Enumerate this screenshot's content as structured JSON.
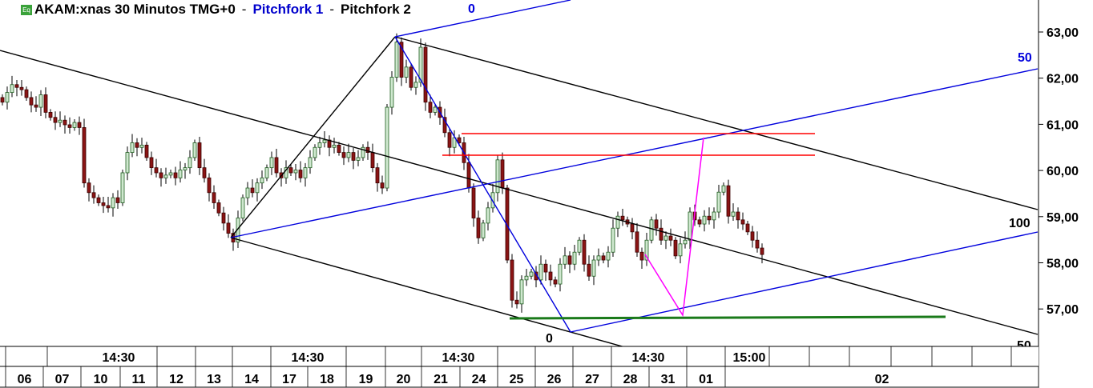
{
  "header": {
    "symbol_title": "AKAM:xnas 30 Minutos TMG+0",
    "separator": "-",
    "study1": "Pitchfork 1",
    "study2": "Pitchfork 2",
    "badge": "Eq"
  },
  "drawing_labels": {
    "pf1_top": "0",
    "pf1_50": "50",
    "pf2_100": "100",
    "pf2_0": "0",
    "pf2_50": "50"
  },
  "chart_data": {
    "type": "candlestick",
    "title": "AKAM:xnas 30 Minutos TMG+0",
    "y_ticks": [
      "63,00",
      "62,00",
      "61,00",
      "60,00",
      "59,00",
      "58,00",
      "57,00"
    ],
    "y_tick_values": [
      63,
      62,
      61,
      60,
      59,
      58,
      57
    ],
    "ylim": [
      56.1,
      63.7
    ],
    "grid": false,
    "time_labels": [
      "14:30",
      "14:30",
      "14:30",
      "14:30",
      "15:00"
    ],
    "date_labels": [
      "06",
      "07",
      "10",
      "11",
      "12",
      "13",
      "14",
      "17",
      "18",
      "19",
      "20",
      "21",
      "24",
      "25",
      "26",
      "27",
      "28",
      "31",
      "01",
      "02"
    ],
    "close": [
      61.48,
      61.69,
      61.86,
      61.8,
      61.75,
      61.58,
      61.42,
      61.37,
      61.64,
      61.26,
      61.15,
      61.04,
      61.09,
      60.99,
      60.93,
      61.04,
      60.93,
      59.73,
      59.52,
      59.41,
      59.3,
      59.24,
      59.19,
      59.41,
      59.3,
      59.95,
      60.39,
      60.6,
      60.5,
      60.55,
      60.28,
      60.06,
      59.95,
      59.84,
      59.9,
      59.95,
      59.84,
      60.01,
      60.06,
      60.28,
      60.6,
      60.06,
      59.84,
      59.52,
      59.3,
      59.08,
      58.86,
      58.64,
      58.45,
      58.97,
      59.41,
      59.62,
      59.52,
      59.73,
      59.84,
      60.06,
      60.28,
      59.95,
      59.84,
      60.06,
      59.95,
      60.01,
      59.84,
      60.06,
      60.28,
      60.5,
      60.6,
      60.66,
      60.5,
      60.55,
      60.39,
      60.28,
      60.39,
      60.22,
      60.28,
      60.5,
      60.39,
      60.06,
      59.73,
      59.62,
      61.37,
      62.02,
      62.78,
      62.02,
      62.24,
      61.8,
      61.91,
      62.67,
      61.48,
      61.26,
      61.37,
      61.15,
      60.82,
      60.5,
      60.71,
      60.6,
      60.17,
      59.62,
      58.97,
      58.54,
      58.86,
      59.19,
      59.52,
      60.23,
      59.62,
      58.06,
      57.19,
      57.11,
      57.63,
      57.71,
      57.8,
      57.63,
      57.97,
      57.8,
      57.63,
      57.54,
      57.97,
      58.15,
      57.97,
      58.23,
      58.49,
      57.97,
      57.71,
      58.06,
      58.15,
      58.06,
      58.23,
      58.75,
      59.01,
      58.93,
      58.84,
      58.67,
      58.23,
      58.06,
      58.49,
      58.93,
      58.75,
      58.49,
      58.58,
      58.49,
      58.15,
      58.41,
      58.49,
      59.1,
      58.93,
      58.84,
      59.01,
      58.93,
      59.1,
      59.53,
      59.67,
      59.01,
      59.1,
      58.93,
      58.84,
      58.67,
      58.49,
      58.32,
      58.18
    ],
    "levels": {
      "red_upper": 60.8,
      "red_lower": 60.33,
      "green": 56.8
    },
    "colors": {
      "up_fill": "#cfe8cf",
      "up_stroke": "#1f5e1f",
      "down_fill": "#8b1414",
      "down_stroke": "#3a0000",
      "pitchfork1": "#0000dd",
      "pitchfork2": "#000000",
      "level_red": "#ff0000",
      "level_green": "#1a7a1a",
      "path": "#ff00ff"
    }
  }
}
